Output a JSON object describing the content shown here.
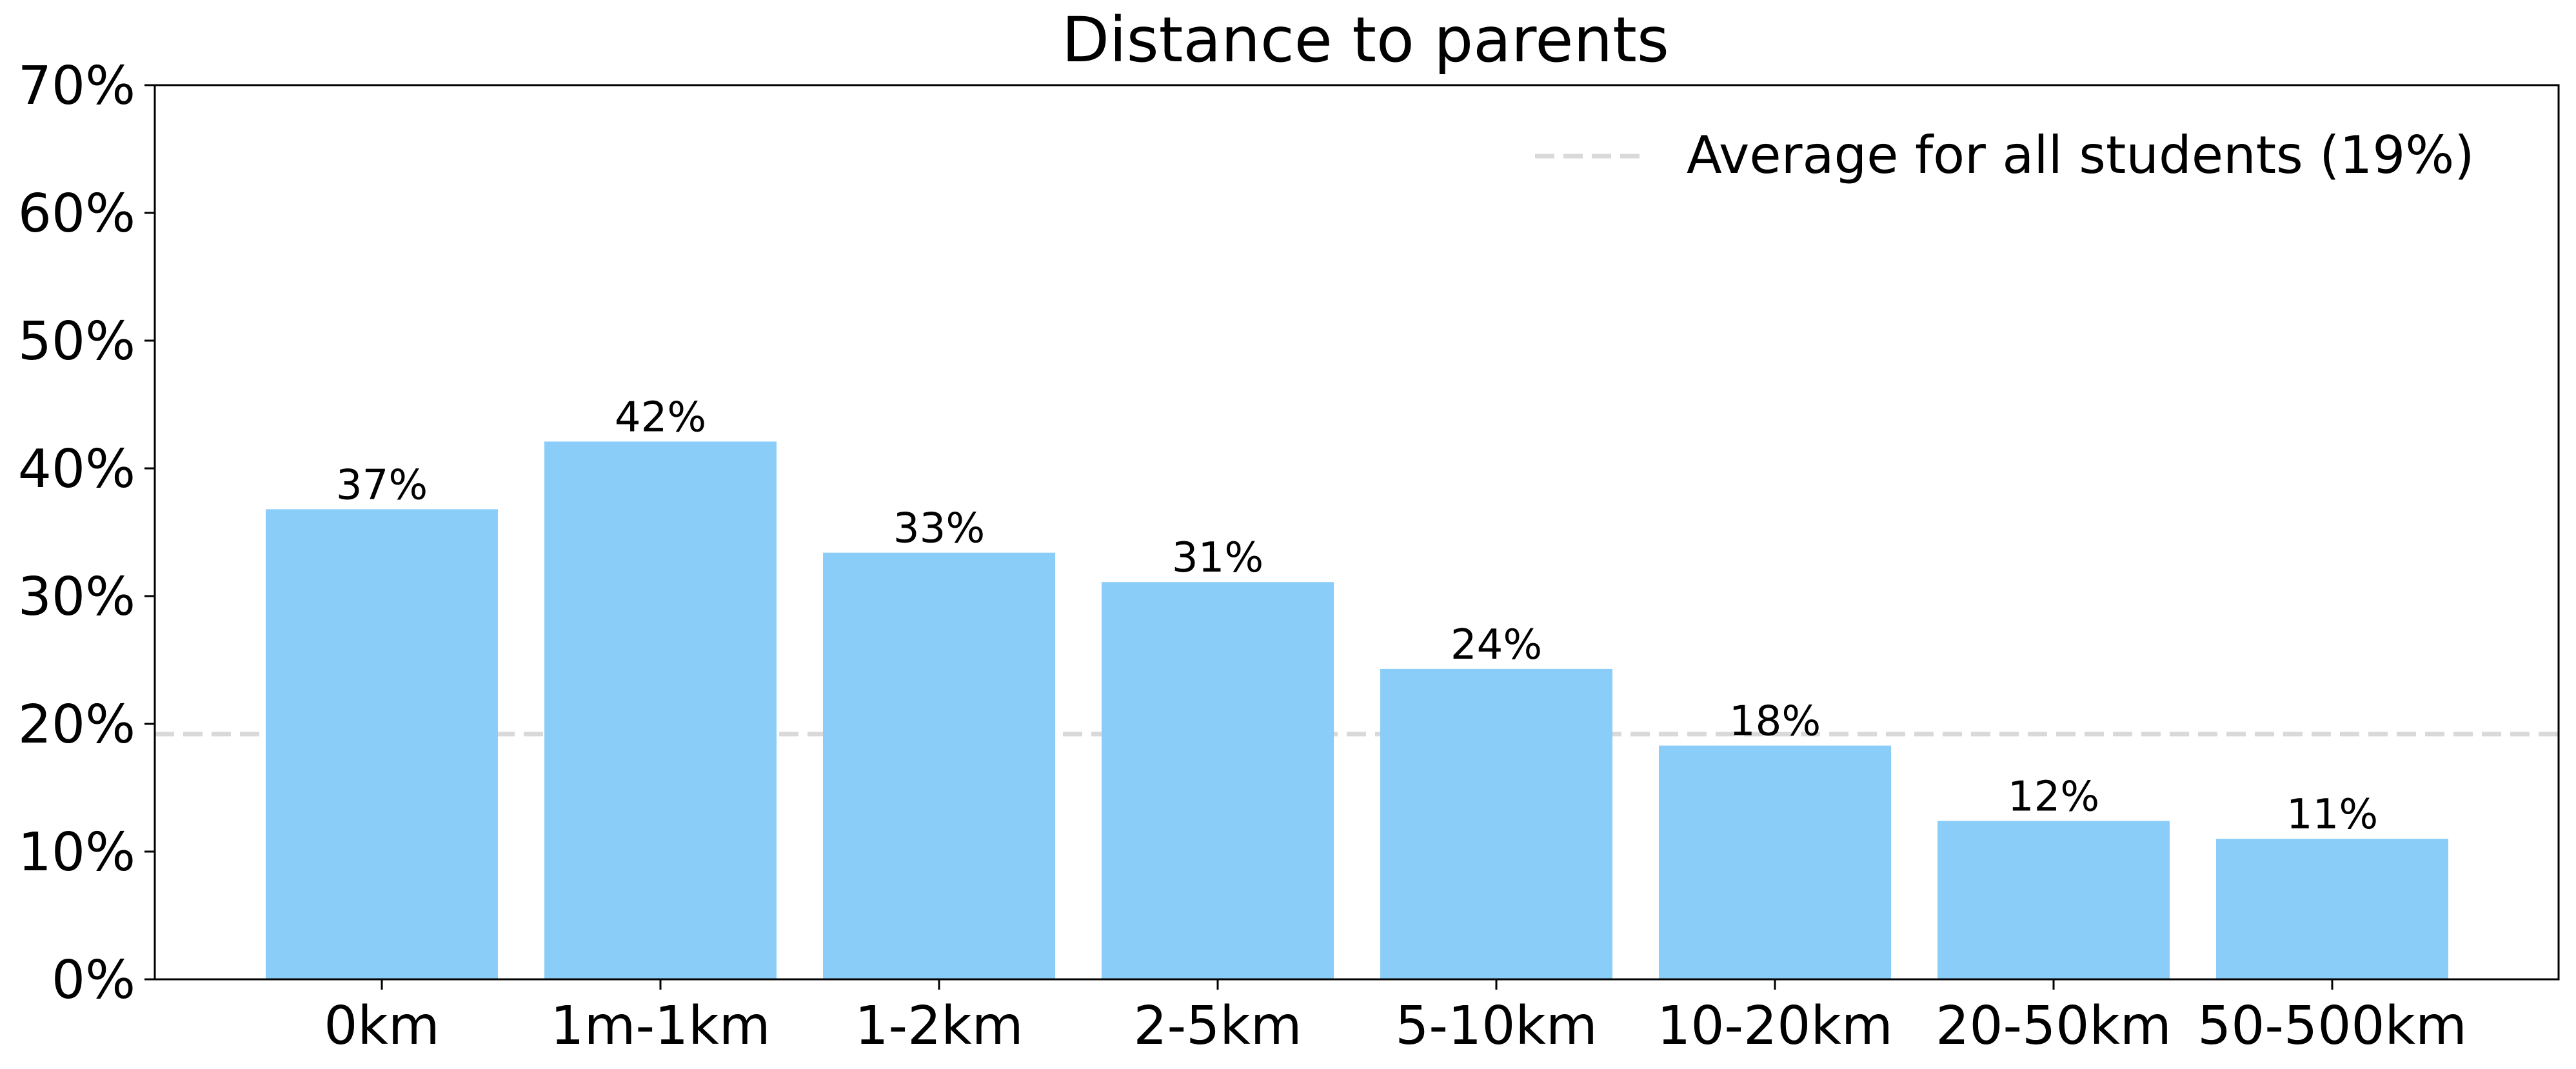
{
  "chart_data": {
    "type": "bar",
    "title": "Distance to parents",
    "xlabel": "",
    "ylabel": "",
    "categories": [
      "0km",
      "1m-1km",
      "1-2km",
      "2-5km",
      "5-10km",
      "10-20km",
      "20-50km",
      "50-500km"
    ],
    "values": [
      36.8,
      42.1,
      33.4,
      31.1,
      24.3,
      18.3,
      12.4,
      11.0
    ],
    "data_labels": [
      "37%",
      "42%",
      "33%",
      "31%",
      "24%",
      "18%",
      "12%",
      "11%"
    ],
    "ylim": [
      0,
      70
    ],
    "y_ticks": [
      0,
      10,
      20,
      30,
      40,
      50,
      60,
      70
    ],
    "y_tick_labels": [
      "0%",
      "10%",
      "20%",
      "30%",
      "40%",
      "50%",
      "60%",
      "70%"
    ],
    "grid": false,
    "reference_line": {
      "value": 19.2,
      "label": "Average for all students (19%)",
      "style": "dashed"
    },
    "legend": {
      "position": "top-right",
      "entries": [
        "Average for all students (19%)"
      ]
    },
    "colors": {
      "bar": "#89CDF8",
      "reference_line": "#D9D9D9",
      "axis": "#000000"
    }
  }
}
